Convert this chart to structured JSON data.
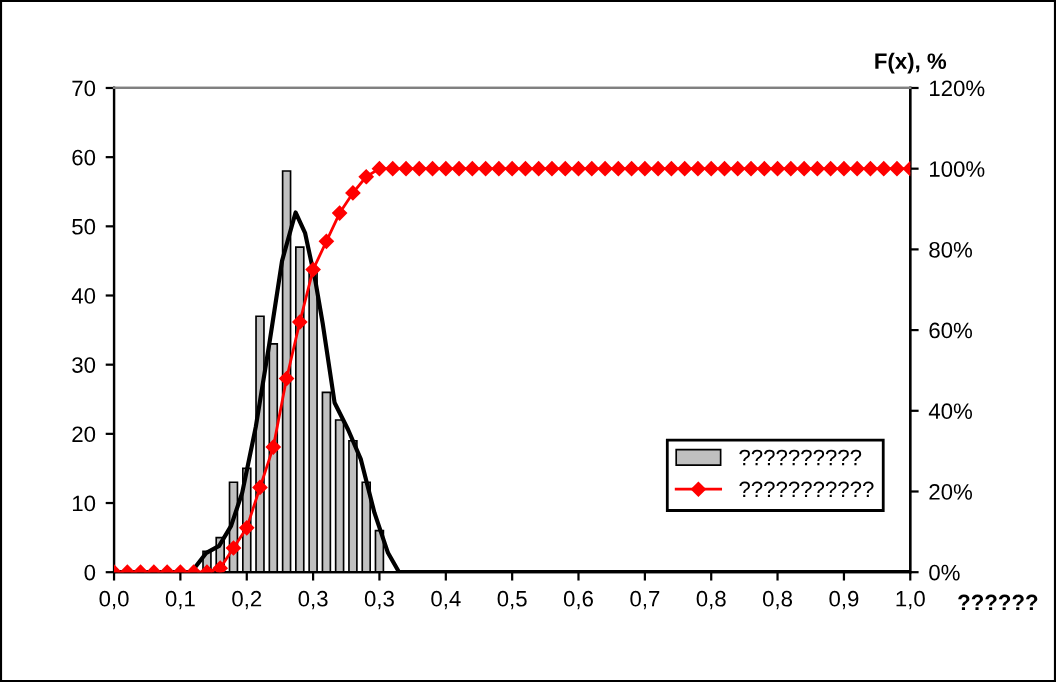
{
  "chart_data": {
    "type": "bar",
    "ylabel": null,
    "y2label": "F(x), %",
    "xlabel": "??????",
    "xlim": [
      0,
      1.0
    ],
    "ylim": [
      0,
      70
    ],
    "yticks": [
      0,
      10,
      20,
      30,
      40,
      50,
      60,
      70
    ],
    "y2lim": [
      0,
      120
    ],
    "y2ticks": [
      {
        "value": 0,
        "label": "0%"
      },
      {
        "value": 20,
        "label": "20%"
      },
      {
        "value": 40,
        "label": "40%"
      },
      {
        "value": 60,
        "label": "60%"
      },
      {
        "value": 80,
        "label": "80%"
      },
      {
        "value": 100,
        "label": "100%"
      },
      {
        "value": 120,
        "label": "120%"
      }
    ],
    "xticks": [
      {
        "value": 0,
        "label": "0,0"
      },
      {
        "value": 0.0833,
        "label": "0,1"
      },
      {
        "value": 0.1667,
        "label": "0,2"
      },
      {
        "value": 0.25,
        "label": "0,3"
      },
      {
        "value": 0.3333,
        "label": "0,3"
      },
      {
        "value": 0.4167,
        "label": "0,4"
      },
      {
        "value": 0.5,
        "label": "0,5"
      },
      {
        "value": 0.5833,
        "label": "0,6"
      },
      {
        "value": 0.6667,
        "label": "0,7"
      },
      {
        "value": 0.75,
        "label": "0,8"
      },
      {
        "value": 0.8333,
        "label": "0,8"
      },
      {
        "value": 0.9167,
        "label": "0,9"
      },
      {
        "value": 1.0,
        "label": "1,0"
      }
    ],
    "grid": false,
    "legend": "right",
    "series": [
      {
        "name": "??????????",
        "color": "#c0c0c0",
        "x": [
          0.1167,
          0.1333,
          0.15,
          0.1667,
          0.1833,
          0.2,
          0.2167,
          0.2333,
          0.25,
          0.2667,
          0.2833,
          0.3,
          0.3167,
          0.3333
        ],
        "values": [
          3,
          5,
          13,
          15,
          37,
          33,
          58,
          47,
          44,
          26,
          22,
          19,
          13,
          6
        ]
      },
      {
        "type": "line",
        "color": "#000000",
        "marker": "none",
        "x": [
          0.0,
          0.097,
          0.116,
          0.132,
          0.147,
          0.161,
          0.178,
          0.195,
          0.211,
          0.228,
          0.24,
          0.253,
          0.262,
          0.277,
          0.294,
          0.31,
          0.327,
          0.344,
          0.358,
          1.0
        ],
        "values": [
          0,
          0,
          2.8,
          3.8,
          6.7,
          11.5,
          21,
          33,
          45,
          52,
          49,
          42,
          36,
          24.5,
          20.6,
          16.3,
          8.6,
          2.8,
          0,
          0
        ]
      },
      {
        "name": "???????????",
        "type": "line",
        "axis": "y2",
        "color": "#ff0000",
        "marker": "diamond",
        "x": [
          0.0,
          0.0167,
          0.0333,
          0.05,
          0.0667,
          0.0833,
          0.1,
          0.1167,
          0.1333,
          0.15,
          0.1667,
          0.1833,
          0.2,
          0.2167,
          0.2333,
          0.25,
          0.2667,
          0.2833,
          0.3,
          0.3167,
          0.3333,
          0.35,
          0.3667,
          0.3833,
          0.4,
          0.4167,
          0.4333,
          0.45,
          0.4667,
          0.4833,
          0.5,
          0.5167,
          0.5333,
          0.55,
          0.5667,
          0.5833,
          0.6,
          0.6167,
          0.6333,
          0.65,
          0.6667,
          0.6833,
          0.7,
          0.7167,
          0.7333,
          0.75,
          0.7667,
          0.7833,
          0.8,
          0.8167,
          0.8333,
          0.85,
          0.8667,
          0.8833,
          0.9,
          0.9167,
          0.9333,
          0.95,
          0.9667,
          0.9833,
          1.0
        ],
        "values": [
          0,
          0,
          0,
          0,
          0,
          0,
          0,
          0,
          1,
          6,
          11,
          21,
          31,
          48,
          62,
          75,
          82,
          89,
          94,
          98,
          100,
          100,
          100,
          100,
          100,
          100,
          100,
          100,
          100,
          100,
          100,
          100,
          100,
          100,
          100,
          100,
          100,
          100,
          100,
          100,
          100,
          100,
          100,
          100,
          100,
          100,
          100,
          100,
          100,
          100,
          100,
          100,
          100,
          100,
          100,
          100,
          100,
          100,
          100,
          100,
          100
        ]
      }
    ]
  }
}
